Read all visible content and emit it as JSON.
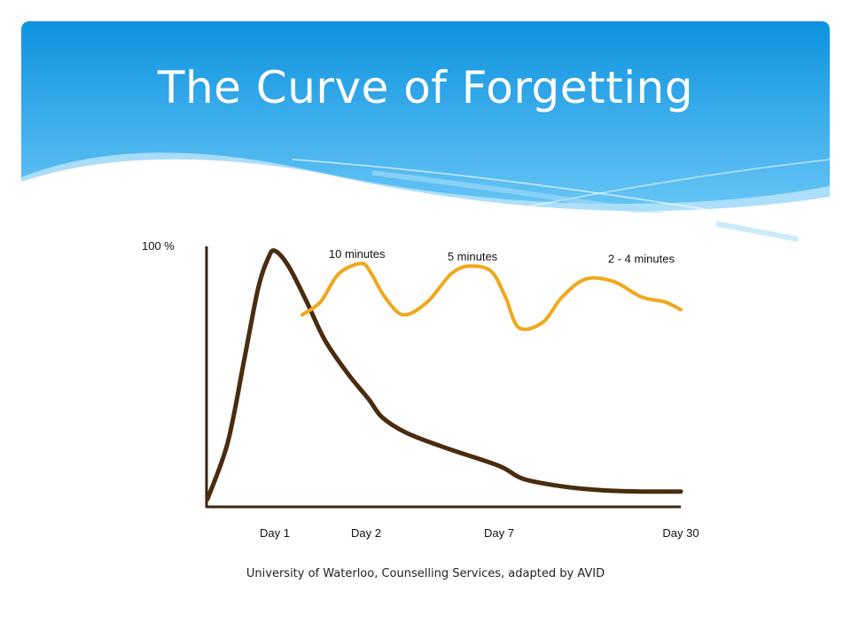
{
  "slide": {
    "title": "The Curve of Forgetting",
    "source": "University of Waterloo, Counselling Services, adapted by AVID"
  },
  "colors": {
    "banner_top": "#0e93df",
    "banner_bottom": "#5cc0f5",
    "retention_curve": "#4a2c10",
    "review_curve": "#f0a81c",
    "axis": "#3a2410"
  },
  "chart_data": {
    "type": "line",
    "ylabel": "100 %",
    "x_ticks": [
      {
        "label": "Day 1",
        "x": 1
      },
      {
        "label": "Day 2",
        "x": 2
      },
      {
        "label": "Day 7",
        "x": 7
      },
      {
        "label": "Day 30",
        "x": 30
      }
    ],
    "ylim": [
      0,
      100
    ],
    "series": [
      {
        "key": "retention",
        "points": [
          [
            0.0,
            3
          ],
          [
            0.3,
            25
          ],
          [
            0.55,
            58
          ],
          [
            0.75,
            85
          ],
          [
            0.9,
            97
          ],
          [
            1.0,
            100
          ],
          [
            1.15,
            94
          ],
          [
            1.35,
            80
          ],
          [
            1.55,
            65
          ],
          [
            1.8,
            52
          ],
          [
            2.1,
            42
          ],
          [
            2.6,
            35
          ],
          [
            3.5,
            29
          ],
          [
            5,
            23
          ],
          [
            7,
            16
          ],
          [
            10,
            11
          ],
          [
            15,
            8
          ],
          [
            20,
            6.5
          ],
          [
            25,
            6
          ],
          [
            30,
            6
          ]
        ]
      },
      {
        "key": "review",
        "points": [
          [
            1.3,
            75
          ],
          [
            1.5,
            80
          ],
          [
            1.7,
            91
          ],
          [
            1.95,
            95
          ],
          [
            2.2,
            91
          ],
          [
            2.7,
            82
          ],
          [
            3.4,
            75
          ],
          [
            4.3,
            80
          ],
          [
            5.2,
            91
          ],
          [
            5.9,
            94
          ],
          [
            6.7,
            92
          ],
          [
            7.8,
            82
          ],
          [
            9.5,
            70
          ],
          [
            12.5,
            72
          ],
          [
            15,
            82
          ],
          [
            18,
            89
          ],
          [
            21.5,
            88
          ],
          [
            25,
            82
          ],
          [
            28,
            80
          ],
          [
            30,
            77
          ]
        ]
      }
    ],
    "annotations": [
      {
        "text": "10 minutes",
        "x": 1.9,
        "y": 99
      },
      {
        "text": "5 minutes",
        "x": 6.0,
        "y": 98
      },
      {
        "text": "2 - 4 minutes",
        "x": 25,
        "y": 97
      }
    ]
  }
}
